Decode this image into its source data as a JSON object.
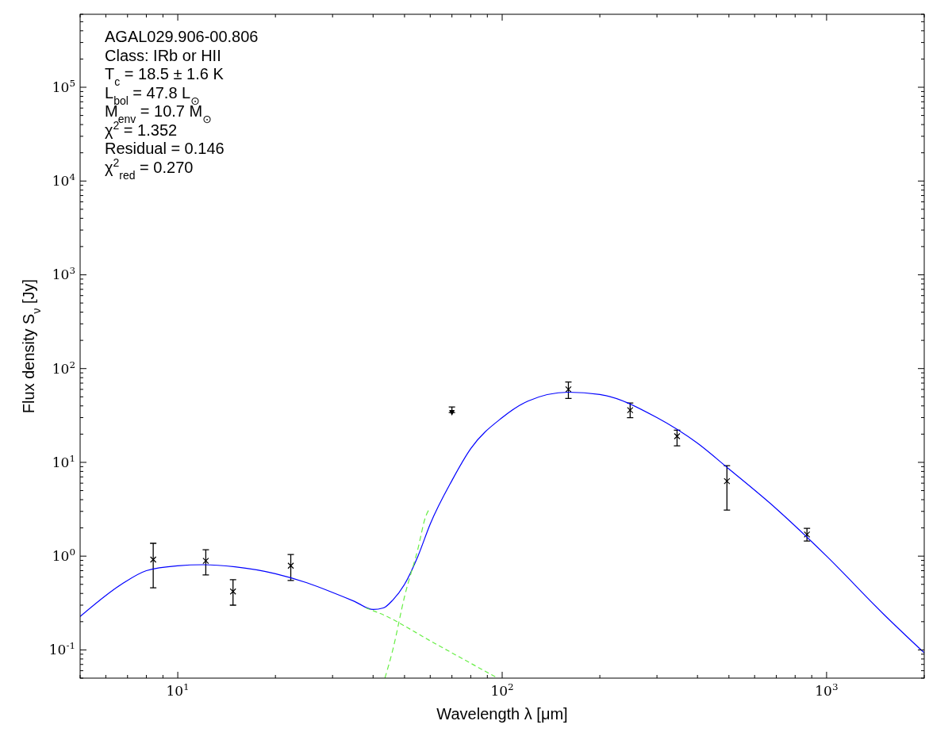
{
  "chart_data": {
    "type": "scatter",
    "xlabel": "Wavelength λ [μm]",
    "ylabel": "Flux density S$_{ν}$ [Jy]",
    "log": "xy",
    "grid": false,
    "xlim": [
      5,
      2000
    ],
    "ylim": [
      0.05,
      600000
    ],
    "xticks": [
      {
        "value": 5,
        "label": null
      },
      {
        "value": 6,
        "label": null
      },
      {
        "value": 7,
        "label": null
      },
      {
        "value": 8,
        "label": null
      },
      {
        "value": 9,
        "label": null
      },
      {
        "value": 10,
        "label": "10$^{1}$"
      },
      {
        "value": 20,
        "label": null
      },
      {
        "value": 30,
        "label": null
      },
      {
        "value": 40,
        "label": null
      },
      {
        "value": 50,
        "label": null
      },
      {
        "value": 60,
        "label": null
      },
      {
        "value": 70,
        "label": null
      },
      {
        "value": 80,
        "label": null
      },
      {
        "value": 90,
        "label": null
      },
      {
        "value": 100,
        "label": "10$^{2}$"
      },
      {
        "value": 200,
        "label": null
      },
      {
        "value": 300,
        "label": null
      },
      {
        "value": 400,
        "label": null
      },
      {
        "value": 500,
        "label": null
      },
      {
        "value": 600,
        "label": null
      },
      {
        "value": 700,
        "label": null
      },
      {
        "value": 800,
        "label": null
      },
      {
        "value": 900,
        "label": null
      },
      {
        "value": 1000,
        "label": "10$^{3}$"
      },
      {
        "value": 2000,
        "label": null
      }
    ],
    "yticks": [
      {
        "value": 0.05,
        "label": null
      },
      {
        "value": 0.06,
        "label": null
      },
      {
        "value": 0.07,
        "label": null
      },
      {
        "value": 0.08,
        "label": null
      },
      {
        "value": 0.09,
        "label": null
      },
      {
        "value": 0.1,
        "label": "10$^{-1}$"
      },
      {
        "value": 0.2,
        "label": null
      },
      {
        "value": 0.3,
        "label": null
      },
      {
        "value": 0.4,
        "label": null
      },
      {
        "value": 0.5,
        "label": null
      },
      {
        "value": 0.6,
        "label": null
      },
      {
        "value": 0.7,
        "label": null
      },
      {
        "value": 0.8,
        "label": null
      },
      {
        "value": 0.9,
        "label": null
      },
      {
        "value": 1,
        "label": "10$^{0}$"
      },
      {
        "value": 2,
        "label": null
      },
      {
        "value": 3,
        "label": null
      },
      {
        "value": 4,
        "label": null
      },
      {
        "value": 5,
        "label": null
      },
      {
        "value": 6,
        "label": null
      },
      {
        "value": 7,
        "label": null
      },
      {
        "value": 8,
        "label": null
      },
      {
        "value": 9,
        "label": null
      },
      {
        "value": 10,
        "label": "10$^{1}$"
      },
      {
        "value": 20,
        "label": null
      },
      {
        "value": 30,
        "label": null
      },
      {
        "value": 40,
        "label": null
      },
      {
        "value": 50,
        "label": null
      },
      {
        "value": 60,
        "label": null
      },
      {
        "value": 70,
        "label": null
      },
      {
        "value": 80,
        "label": null
      },
      {
        "value": 90,
        "label": null
      },
      {
        "value": 100,
        "label": "10$^{2}$"
      },
      {
        "value": 200,
        "label": null
      },
      {
        "value": 300,
        "label": null
      },
      {
        "value": 400,
        "label": null
      },
      {
        "value": 500,
        "label": null
      },
      {
        "value": 600,
        "label": null
      },
      {
        "value": 700,
        "label": null
      },
      {
        "value": 800,
        "label": null
      },
      {
        "value": 900,
        "label": null
      },
      {
        "value": 1000,
        "label": "10$^{3}$"
      },
      {
        "value": 2000,
        "label": null
      },
      {
        "value": 3000,
        "label": null
      },
      {
        "value": 4000,
        "label": null
      },
      {
        "value": 5000,
        "label": null
      },
      {
        "value": 6000,
        "label": null
      },
      {
        "value": 7000,
        "label": null
      },
      {
        "value": 8000,
        "label": null
      },
      {
        "value": 9000,
        "label": null
      },
      {
        "value": 10000,
        "label": "10$^{4}$"
      },
      {
        "value": 20000,
        "label": null
      },
      {
        "value": 30000,
        "label": null
      },
      {
        "value": 40000,
        "label": null
      },
      {
        "value": 50000,
        "label": null
      },
      {
        "value": 60000,
        "label": null
      },
      {
        "value": 70000,
        "label": null
      },
      {
        "value": 80000,
        "label": null
      },
      {
        "value": 90000,
        "label": null
      },
      {
        "value": 100000,
        "label": "10$^{5}$"
      },
      {
        "value": 200000,
        "label": null
      },
      {
        "value": 300000,
        "label": null
      },
      {
        "value": 400000,
        "label": null
      },
      {
        "value": 500000,
        "label": null
      },
      {
        "value": 600000,
        "label": null
      }
    ],
    "annotations": [
      "AGAL029.906-00.806",
      "Class: IRb or HII",
      "T$_{c}$ = 18.5 ± 1.6 K",
      "L$_{bol}$ = 47.8 L$_{⊙}$",
      "M$_{env}$ = 10.7 M$_{⊙}$",
      "χ$^{2}$ = 1.352",
      "Residual = 0.146",
      "χ$^{2}$$_{red}$ = 0.270"
    ],
    "series": [
      {
        "color": "#000000",
        "marker": "cross",
        "x": [
          8.4,
          12.2,
          14.8,
          22.3,
          160,
          248,
          346,
          493,
          870
        ],
        "values": [
          0.92,
          0.89,
          0.42,
          0.79,
          60,
          36,
          19,
          6.3,
          1.7
        ],
        "errors": [
          [
            0.46,
            1.37
          ],
          [
            0.63,
            1.17
          ],
          [
            0.3,
            0.56
          ],
          [
            0.55,
            1.04
          ],
          [
            48,
            72
          ],
          [
            30,
            43
          ],
          [
            15,
            22
          ],
          [
            3.1,
            9.2
          ],
          [
            1.45,
            1.98
          ]
        ]
      },
      {
        "color": "#000000",
        "marker": "triangle",
        "x": [
          70
        ],
        "values": [
          34
        ],
        "errors": [
          [
            34,
            39
          ]
        ]
      },
      {
        "type": "line",
        "color": "#0000ff",
        "marker": "none",
        "line_style": "solid",
        "x": [
          5,
          6.7,
          8,
          10,
          12,
          15,
          20,
          25,
          30,
          35,
          40,
          43,
          46,
          50,
          55,
          60,
          70,
          80,
          100,
          120,
          160,
          200,
          300,
          400,
          500,
          700,
          1000,
          1500,
          2000
        ],
        "values": [
          0.227,
          0.5,
          0.7,
          0.79,
          0.81,
          0.77,
          0.65,
          0.52,
          0.41,
          0.33,
          0.27,
          0.28,
          0.34,
          0.5,
          1.0,
          2.2,
          6.4,
          14,
          30,
          45,
          56,
          53,
          30,
          16,
          8.5,
          3.2,
          1.0,
          0.24,
          0.093
        ]
      },
      {
        "type": "line",
        "color": "#66ee44",
        "marker": "none",
        "line_style": "dashed",
        "x": [
          38,
          45,
          50,
          60,
          70,
          80,
          97
        ],
        "values": [
          0.28,
          0.22,
          0.18,
          0.125,
          0.093,
          0.072,
          0.05
        ]
      },
      {
        "type": "line",
        "color": "#66ee44",
        "marker": "none",
        "line_style": "dashed",
        "x": [
          43.5,
          46,
          50,
          55,
          58,
          60
        ],
        "values": [
          0.05,
          0.1,
          0.37,
          1.2,
          2.6,
          3.3
        ]
      }
    ]
  }
}
